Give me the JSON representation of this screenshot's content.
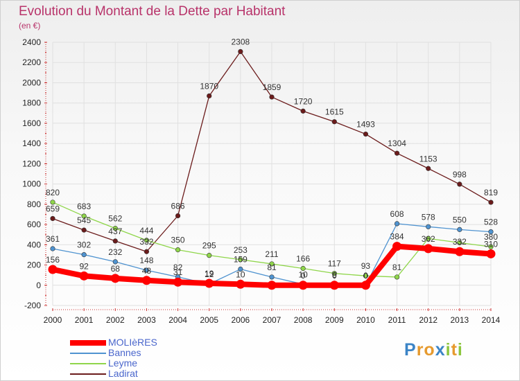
{
  "header": {
    "title": "Evolution du Montant de la Dette par Habitant",
    "subtitle": "(en €)"
  },
  "colors": {
    "title": "#b8336a",
    "legend_text": "#4a66cc",
    "grid": "#e0e0e0"
  },
  "logo": {
    "text": "Proxiti",
    "letters": [
      {
        "ch": "P",
        "color": "#3b84c6"
      },
      {
        "ch": "r",
        "color": "#e69a2e"
      },
      {
        "ch": "o",
        "color": "#e69a2e"
      },
      {
        "ch": "x",
        "color": "#3b84c6"
      },
      {
        "ch": "i",
        "color": "#8cc63e"
      },
      {
        "ch": "t",
        "color": "#e69a2e"
      },
      {
        "ch": "i",
        "color": "#8cc63e"
      }
    ]
  },
  "chart_data": {
    "type": "line",
    "title": "Evolution du Montant de la Dette par Habitant",
    "subtitle": "(en €)",
    "xlabel": "",
    "ylabel": "",
    "x": [
      "2000",
      "2001",
      "2002",
      "2003",
      "2004",
      "2005",
      "2006",
      "2007",
      "2008",
      "2009",
      "2010",
      "2011",
      "2012",
      "2013",
      "2014"
    ],
    "ylim": [
      -200,
      2400
    ],
    "yticks": [
      -200,
      0,
      200,
      400,
      600,
      800,
      1000,
      1200,
      1400,
      1600,
      1800,
      2000,
      2200,
      2400
    ],
    "grid": true,
    "legend": "bottom-left",
    "series": [
      {
        "name": "Ladirat",
        "color": "#6b1b1b",
        "thick": false,
        "values": [
          659,
          545,
          437,
          332,
          686,
          1870,
          2308,
          1859,
          1720,
          1615,
          1493,
          1304,
          1153,
          998,
          819
        ],
        "labels": [
          "659",
          "545",
          "437",
          "332",
          "686",
          "1870",
          "2308",
          "1859",
          "1720",
          "1615",
          "1493",
          "1304",
          "1153",
          "998",
          "819"
        ]
      },
      {
        "name": "Leyme",
        "color": "#8fd64a",
        "thick": false,
        "values": [
          820,
          683,
          562,
          444,
          350,
          295,
          253,
          211,
          166,
          117,
          93,
          81,
          462,
          420,
          380
        ],
        "labels": [
          "820",
          "683",
          "562",
          "444",
          "350",
          "295",
          "253",
          "211",
          "166",
          "117",
          "93",
          "81",
          "",
          "",
          "380"
        ]
      },
      {
        "name": "Bannes",
        "color": "#4f93d0",
        "thick": false,
        "values": [
          361,
          302,
          232,
          148,
          82,
          12,
          159,
          81,
          10,
          6,
          0,
          608,
          578,
          550,
          528
        ],
        "labels": [
          "361",
          "302",
          "232",
          "148",
          "82",
          "12",
          "159",
          "81",
          "10",
          "6",
          "0",
          "608",
          "578",
          "550",
          "528"
        ]
      },
      {
        "name": "MOLIèRES",
        "color": "#ff0000",
        "thick": true,
        "values": [
          156,
          92,
          68,
          48,
          31,
          19,
          10,
          0,
          0,
          0,
          0,
          384,
          362,
          332,
          310
        ],
        "labels": [
          "156",
          "92",
          "68",
          "48",
          "31",
          "19",
          "10",
          "",
          "0",
          "0",
          "0",
          "384",
          "362",
          "332",
          "310"
        ]
      }
    ],
    "legend_entries": [
      "MOLIèRES",
      "Bannes",
      "Leyme",
      "Ladirat"
    ]
  }
}
